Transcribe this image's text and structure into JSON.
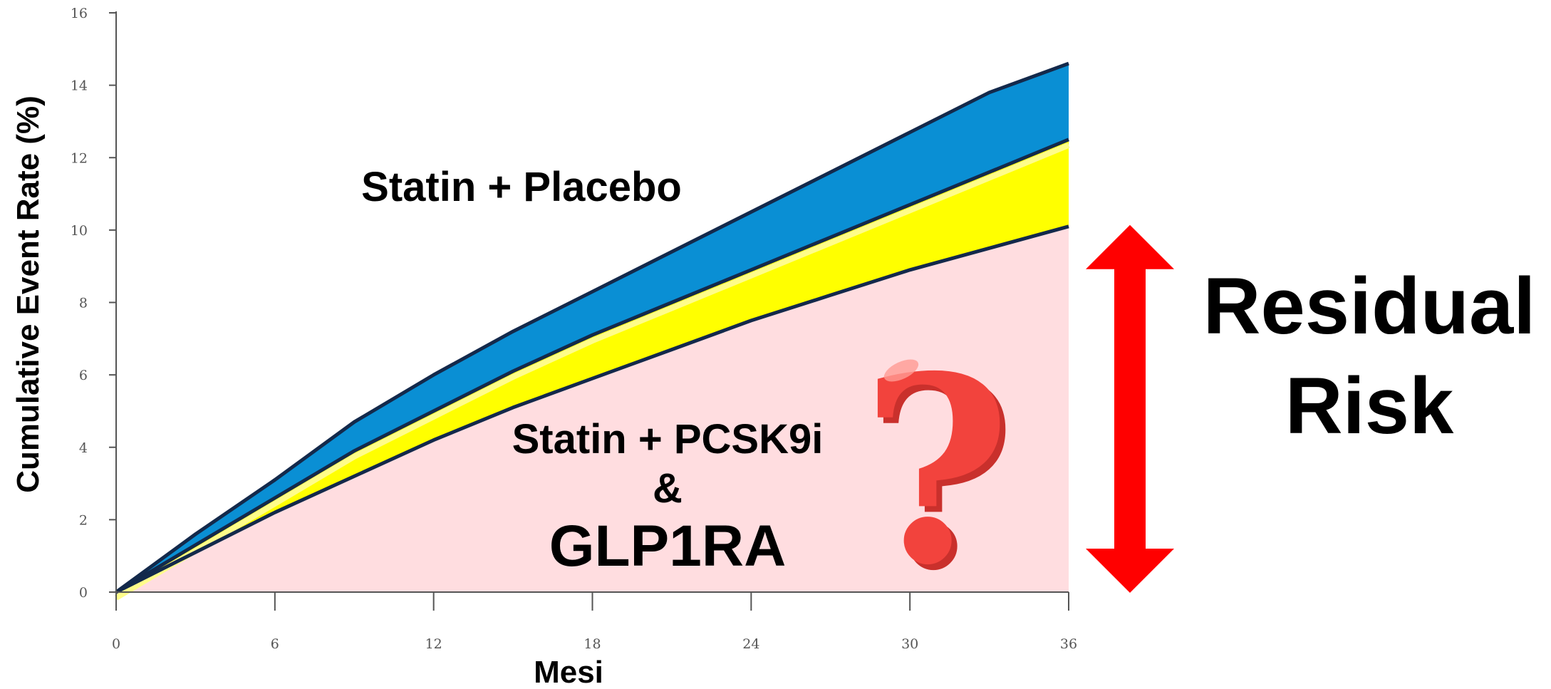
{
  "chart_data": {
    "type": "area",
    "title": "",
    "xlabel": "Mesi",
    "ylabel": "Cumulative Event Rate (%)",
    "xlim": [
      0,
      36
    ],
    "ylim": [
      0,
      16
    ],
    "x_ticks": [
      0,
      6,
      12,
      18,
      24,
      30,
      36
    ],
    "y_ticks": [
      0,
      2,
      4,
      6,
      8,
      10,
      12,
      14,
      16
    ],
    "grid": false,
    "series": [
      {
        "name": "Statin + Placebo",
        "color": "#0a8fd4",
        "x": [
          0,
          3,
          6,
          9,
          12,
          15,
          18,
          21,
          24,
          27,
          30,
          33,
          36
        ],
        "y": [
          0,
          1.6,
          3.1,
          4.7,
          6.0,
          7.2,
          8.3,
          9.4,
          10.5,
          11.6,
          12.7,
          13.8,
          14.6
        ]
      },
      {
        "name": "Statin + PCSK9i",
        "color": "#ffff00",
        "x": [
          0,
          3,
          6,
          9,
          12,
          15,
          18,
          21,
          24,
          27,
          30,
          33,
          36
        ],
        "y": [
          0,
          1.3,
          2.6,
          3.9,
          5.0,
          6.1,
          7.1,
          8.0,
          8.9,
          9.8,
          10.7,
          11.6,
          12.5
        ]
      },
      {
        "name": "GLP1RA",
        "color": "#ffdde0",
        "x": [
          0,
          3,
          6,
          9,
          12,
          15,
          18,
          21,
          24,
          27,
          30,
          33,
          36
        ],
        "y": [
          0,
          1.1,
          2.2,
          3.2,
          4.2,
          5.1,
          5.9,
          6.7,
          7.5,
          8.2,
          8.9,
          9.5,
          10.1
        ]
      }
    ],
    "annotations": {
      "placebo_label": "Statin + Placebo",
      "pcsk9_label": "Statin + PCSK9i",
      "amp_label": "&",
      "glp_label": "GLP1RA",
      "question_mark": "?",
      "residual_line1": "Residual",
      "residual_line2": "Risk"
    },
    "arrow": {
      "from_y": 0,
      "to_y": 10.1,
      "color": "#ff0000"
    }
  }
}
